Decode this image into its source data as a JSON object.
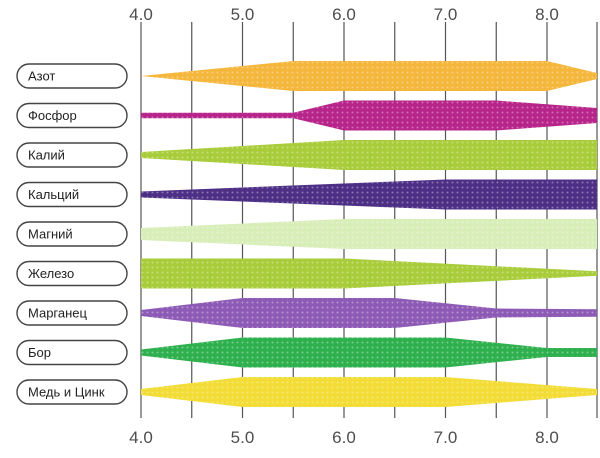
{
  "chart_data": {
    "type": "band",
    "title": "",
    "xlabel": "",
    "ylabel": "",
    "xlim": [
      4.0,
      8.5
    ],
    "x_ticks": [
      "4.0",
      "5.0",
      "6.0",
      "7.0",
      "8.0"
    ],
    "grid": "vertical lines every 0.5",
    "series": [
      {
        "name": "Азот",
        "color": "#f5b63c",
        "profile": [
          [
            4.0,
            0.0
          ],
          [
            5.5,
            1.0
          ],
          [
            8.0,
            1.0
          ],
          [
            8.5,
            0.2
          ]
        ]
      },
      {
        "name": "Фосфор",
        "color": "#b7248a",
        "profile": [
          [
            4.0,
            0.18
          ],
          [
            5.5,
            0.18
          ],
          [
            6.0,
            1.0
          ],
          [
            7.5,
            1.0
          ],
          [
            8.5,
            0.5
          ]
        ]
      },
      {
        "name": "Калий",
        "color": "#a8cc3a",
        "profile": [
          [
            4.0,
            0.2
          ],
          [
            6.0,
            1.0
          ],
          [
            8.5,
            1.0
          ]
        ]
      },
      {
        "name": "Кальций",
        "color": "#4e2f86",
        "profile": [
          [
            4.0,
            0.2
          ],
          [
            7.0,
            1.0
          ],
          [
            8.5,
            1.0
          ]
        ]
      },
      {
        "name": "Магний",
        "color": "#d8eeb8",
        "profile": [
          [
            4.0,
            0.4
          ],
          [
            6.0,
            1.0
          ],
          [
            8.5,
            1.0
          ]
        ]
      },
      {
        "name": "Железо",
        "color": "#a8cc3a",
        "profile": [
          [
            4.0,
            1.0
          ],
          [
            6.0,
            1.0
          ],
          [
            8.5,
            0.15
          ]
        ]
      },
      {
        "name": "Марганец",
        "color": "#8d5bb6",
        "profile": [
          [
            4.0,
            0.2
          ],
          [
            5.0,
            1.0
          ],
          [
            6.5,
            1.0
          ],
          [
            7.5,
            0.3
          ],
          [
            8.5,
            0.25
          ]
        ]
      },
      {
        "name": "Бор",
        "color": "#2fb04e",
        "profile": [
          [
            4.0,
            0.2
          ],
          [
            5.0,
            1.0
          ],
          [
            7.0,
            1.0
          ],
          [
            8.0,
            0.3
          ],
          [
            8.5,
            0.3
          ]
        ]
      },
      {
        "name": "Медь и Цинк",
        "color": "#f2dc35",
        "profile": [
          [
            4.0,
            0.2
          ],
          [
            5.0,
            1.0
          ],
          [
            7.0,
            1.0
          ],
          [
            8.5,
            0.2
          ]
        ]
      }
    ]
  }
}
